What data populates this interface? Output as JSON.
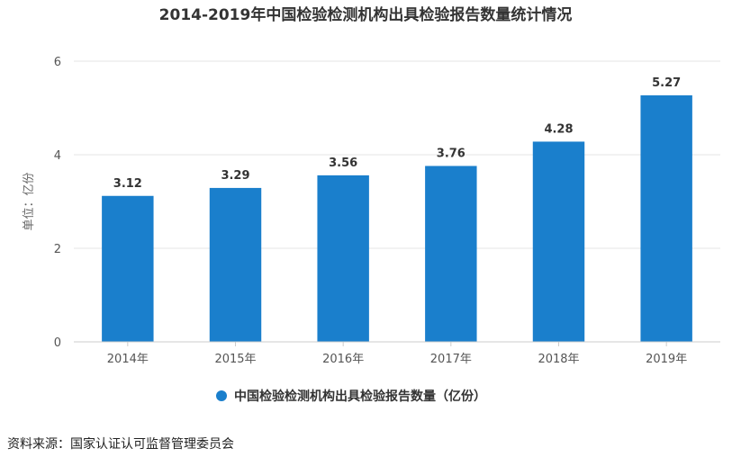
{
  "chart_data": {
    "type": "bar",
    "title": "2014-2019年中国检验检测机构出具检验报告数量统计情况",
    "ylabel": "单位：亿份",
    "xlabel": "",
    "categories": [
      "2014年",
      "2015年",
      "2016年",
      "2017年",
      "2018年",
      "2019年"
    ],
    "series": [
      {
        "name": "中国检验检测机构出具检验报告数量（亿份）",
        "values": [
          3.12,
          3.29,
          3.56,
          3.76,
          4.28,
          5.27
        ]
      }
    ],
    "data_labels": [
      "3.12",
      "3.29",
      "3.56",
      "3.76",
      "4.28",
      "5.27"
    ],
    "ylim": [
      0,
      6
    ],
    "yticks": [
      "0",
      "2",
      "4",
      "6"
    ],
    "grid": true,
    "legend_position": "bottom-center",
    "bar_color": "#1a7fcc"
  },
  "source_text": "资料来源：国家认证认可监督管理委员会"
}
